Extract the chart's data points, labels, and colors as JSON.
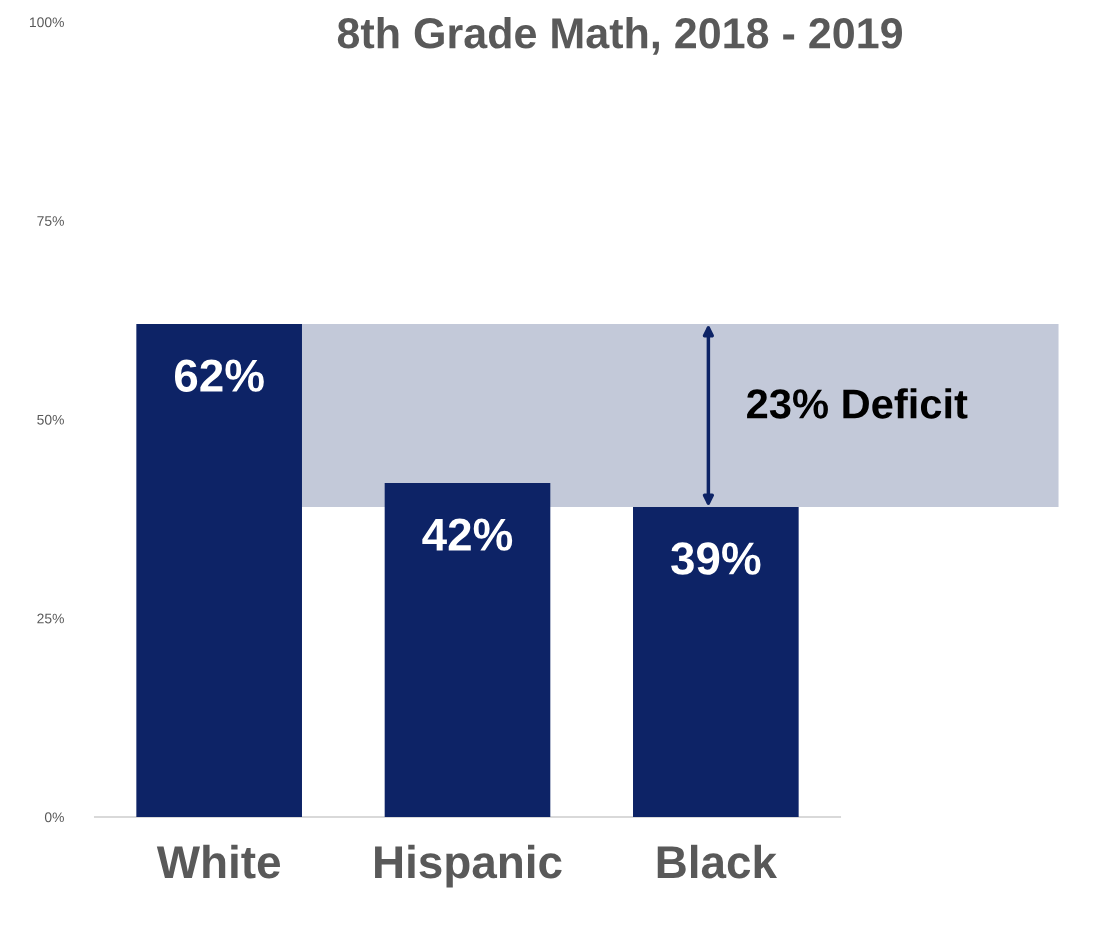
{
  "chart_data": {
    "type": "bar",
    "title": "8th Grade Math, 2018 - 2019",
    "categories": [
      "White",
      "Hispanic",
      "Black"
    ],
    "values": [
      62,
      42,
      39
    ],
    "color": "#0d2366",
    "value_labels": [
      "62%",
      "42%",
      "39%"
    ],
    "ylim": [
      0,
      100
    ],
    "yticks": [
      {
        "value": 0,
        "label": "0%"
      },
      {
        "value": 25,
        "label": "25%"
      },
      {
        "value": 50,
        "label": "50%"
      },
      {
        "value": 75,
        "label": "75%"
      },
      {
        "value": 100,
        "label": "100%"
      }
    ],
    "bands": [
      {
        "axis": "y",
        "from": 39,
        "to": 62,
        "label": "23% Deficit",
        "color": "#c3c9d9"
      }
    ],
    "grid": false
  }
}
